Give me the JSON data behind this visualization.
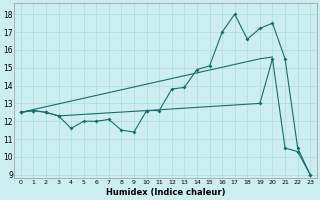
{
  "xlabel": "Humidex (Indice chaleur)",
  "bg_color": "#cceef0",
  "line_color": "#1a6b6b",
  "grid_color": "#aadddd",
  "xlim": [
    -0.5,
    23.5
  ],
  "ylim": [
    8.8,
    18.6
  ],
  "yticks": [
    9,
    10,
    11,
    12,
    13,
    14,
    15,
    16,
    17,
    18
  ],
  "xticks": [
    0,
    1,
    2,
    3,
    4,
    5,
    6,
    7,
    8,
    9,
    10,
    11,
    12,
    13,
    14,
    15,
    16,
    17,
    18,
    19,
    20,
    21,
    22,
    23
  ],
  "line1_x": [
    0,
    1,
    2,
    3,
    4,
    5,
    6,
    7,
    8,
    9,
    10,
    11,
    12,
    13,
    14,
    15,
    16,
    17,
    18,
    19,
    20,
    21,
    22,
    23
  ],
  "line1_y": [
    12.5,
    12.6,
    12.5,
    12.3,
    11.6,
    12.0,
    12.0,
    12.1,
    11.5,
    11.4,
    12.6,
    12.6,
    13.8,
    13.9,
    14.9,
    15.1,
    17.0,
    18.0,
    16.6,
    17.2,
    17.5,
    15.5,
    10.5,
    9.0
  ],
  "line2_x": [
    0,
    1,
    2,
    3,
    10,
    19,
    20,
    21,
    22,
    23
  ],
  "line2_y": [
    12.5,
    12.6,
    12.5,
    12.3,
    12.6,
    13.0,
    15.5,
    10.5,
    10.3,
    9.0
  ],
  "line3_x": [
    0,
    19,
    20
  ],
  "line3_y": [
    12.5,
    15.5,
    15.6
  ]
}
